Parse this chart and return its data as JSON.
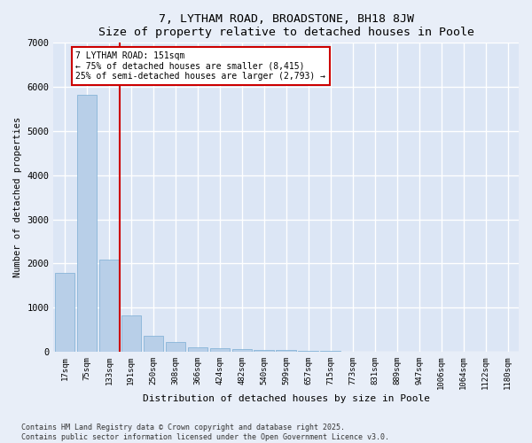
{
  "title": "7, LYTHAM ROAD, BROADSTONE, BH18 8JW",
  "subtitle": "Size of property relative to detached houses in Poole",
  "xlabel": "Distribution of detached houses by size in Poole",
  "ylabel": "Number of detached properties",
  "categories": [
    "17sqm",
    "75sqm",
    "133sqm",
    "191sqm",
    "250sqm",
    "308sqm",
    "366sqm",
    "424sqm",
    "482sqm",
    "540sqm",
    "599sqm",
    "657sqm",
    "715sqm",
    "773sqm",
    "831sqm",
    "889sqm",
    "947sqm",
    "1006sqm",
    "1064sqm",
    "1122sqm",
    "1180sqm"
  ],
  "values": [
    1780,
    5820,
    2090,
    820,
    370,
    210,
    100,
    80,
    65,
    45,
    30,
    20,
    10,
    5,
    3,
    2,
    1,
    0,
    0,
    0,
    0
  ],
  "bar_color": "#b8cfe8",
  "bar_edge_color": "#7aadd4",
  "vline_color": "#cc0000",
  "vline_x_index": 2,
  "annotation_title": "7 LYTHAM ROAD: 151sqm",
  "annotation_line1": "← 75% of detached houses are smaller (8,415)",
  "annotation_line2": "25% of semi-detached houses are larger (2,793) →",
  "annotation_box_edgecolor": "#cc0000",
  "annotation_bg": "#ffffff",
  "plot_bg_color": "#dce6f5",
  "fig_bg_color": "#e8eef8",
  "grid_color": "#ffffff",
  "ylim": [
    0,
    7000
  ],
  "yticks": [
    0,
    1000,
    2000,
    3000,
    4000,
    5000,
    6000,
    7000
  ],
  "footer_line1": "Contains HM Land Registry data © Crown copyright and database right 2025.",
  "footer_line2": "Contains public sector information licensed under the Open Government Licence v3.0."
}
